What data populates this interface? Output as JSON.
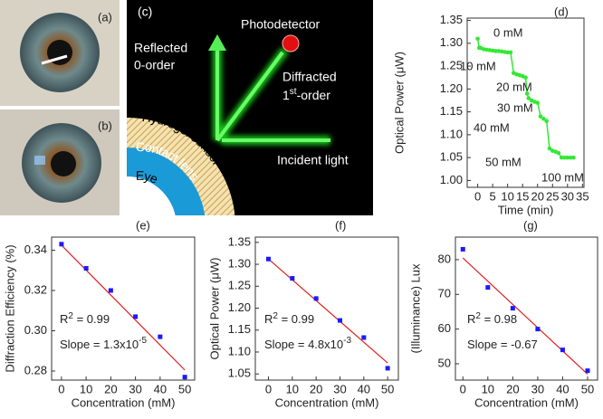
{
  "photos": {
    "a_label": "(a)",
    "b_label": "(b)"
  },
  "diagram": {
    "label": "(c)",
    "photodetector": "Photodetector",
    "reflected_1": "Reflected",
    "reflected_2": "0-order",
    "diffracted_1": "Diffracted",
    "diffracted_2": "1",
    "diffracted_sup": "st",
    "diffracted_3": "-order",
    "incident": "Incident light",
    "hydrogel": "Hydrogel sensor",
    "lens": "Contact lens",
    "eye": "Eye"
  },
  "chart_data": [
    {
      "type": "line",
      "label": "(d)",
      "xlabel": "Time (min)",
      "ylabel": "Optical Power (μW)",
      "color": "#33e833",
      "x": [
        0,
        0.5,
        1,
        2,
        3,
        4,
        5,
        6,
        7,
        8,
        9,
        10,
        11,
        12,
        13,
        14,
        15,
        16,
        16.5,
        17,
        18,
        19,
        20,
        21,
        22,
        23,
        24,
        25,
        26,
        27,
        28,
        29,
        30,
        31,
        32
      ],
      "values": [
        1.31,
        1.29,
        1.29,
        1.287,
        1.286,
        1.285,
        1.284,
        1.283,
        1.283,
        1.282,
        1.281,
        1.28,
        1.28,
        1.235,
        1.232,
        1.23,
        1.228,
        1.225,
        1.19,
        1.18,
        1.175,
        1.172,
        1.17,
        1.14,
        1.135,
        1.13,
        1.07,
        1.065,
        1.063,
        1.06,
        1.05,
        1.05,
        1.05,
        1.05,
        1.05
      ],
      "xlim": [
        -3.5,
        35.5
      ],
      "xticks": [
        0,
        5,
        10,
        15,
        20,
        25,
        30,
        35
      ],
      "ylim": [
        0.985,
        1.355
      ],
      "yticks": [
        {
          "value": 1.0,
          "label": "1.00"
        },
        1.05,
        {
          "value": 1.1,
          "label": "1.10"
        },
        1.15,
        {
          "value": 1.2,
          "label": "1.20"
        },
        1.25,
        {
          "value": 1.3,
          "label": "1.30"
        },
        1.35
      ],
      "annotations": [
        "0 mM",
        "10 mM",
        "20 mM",
        "30 mM",
        "40 mM",
        "50 mM",
        "100 mM"
      ]
    },
    {
      "type": "scatter",
      "label": "(e)",
      "xlabel": "Concentration (mM)",
      "ylabel": "Diffraction Efficiency (%)",
      "color": "#1a1aff",
      "fit_color": "#e02020",
      "x": [
        0,
        10,
        20,
        30,
        40,
        50
      ],
      "values": [
        0.343,
        0.331,
        0.32,
        0.307,
        0.297,
        0.277
      ],
      "fit": {
        "x": [
          0,
          50
        ],
        "values": [
          0.3425,
          0.2805
        ]
      },
      "xlim": [
        -4,
        54
      ],
      "xticks": [
        0,
        10,
        20,
        30,
        40,
        50
      ],
      "ylim": [
        0.2755,
        0.3465
      ],
      "yticks": [
        0.28,
        {
          "value": 0.3,
          "label": "0.30"
        },
        0.32,
        0.34
      ],
      "r2_label": "R",
      "r2_sup": "2",
      "r2_value": " = 0.99",
      "slope_label": "Slope = 1.3x10",
      "slope_sup": "-5"
    },
    {
      "type": "scatter",
      "label": "(f)",
      "xlabel": "Concentration (mM)",
      "ylabel": "Optical Power (μW)",
      "color": "#1a1aff",
      "fit_color": "#e02020",
      "x": [
        0,
        10,
        20,
        30,
        40,
        50
      ],
      "values": [
        1.312,
        1.268,
        1.222,
        1.172,
        1.133,
        1.063
      ],
      "fit": {
        "x": [
          0,
          50
        ],
        "values": [
          1.312,
          1.075
        ]
      },
      "xlim": [
        -5.5,
        54.5
      ],
      "xticks": [
        0,
        10,
        20,
        30,
        40,
        50
      ],
      "ylim": [
        1.036,
        1.362
      ],
      "yticks": [
        1.05,
        {
          "value": 1.1,
          "label": "1.10"
        },
        1.15,
        {
          "value": 1.2,
          "label": "1.20"
        },
        1.25,
        {
          "value": 1.3,
          "label": "1.30"
        },
        1.35
      ],
      "r2_label": "R",
      "r2_sup": "2",
      "r2_value": " = 0.99",
      "slope_label": "Slope = 4.8x10",
      "slope_sup": "-3"
    },
    {
      "type": "scatter",
      "label": "(g)",
      "xlabel": "Concentration (mM)",
      "ylabel": "(Illuminance) Lux",
      "color": "#1a1aff",
      "fit_color": "#e02020",
      "x": [
        0,
        10,
        20,
        30,
        40,
        50
      ],
      "values": [
        83,
        72,
        66,
        60,
        54,
        48
      ],
      "fit": {
        "x": [
          0,
          50
        ],
        "values": [
          80.5,
          47
        ]
      },
      "xlim": [
        -3,
        54
      ],
      "xticks": [
        0,
        10,
        20,
        30,
        40,
        50
      ],
      "ylim": [
        45.3,
        86.5
      ],
      "yticks": [
        50,
        60,
        70,
        80
      ],
      "r2_label": "R",
      "r2_sup": "2",
      "r2_value": " = 0.98",
      "slope_label": "Slope = -0.67"
    }
  ]
}
